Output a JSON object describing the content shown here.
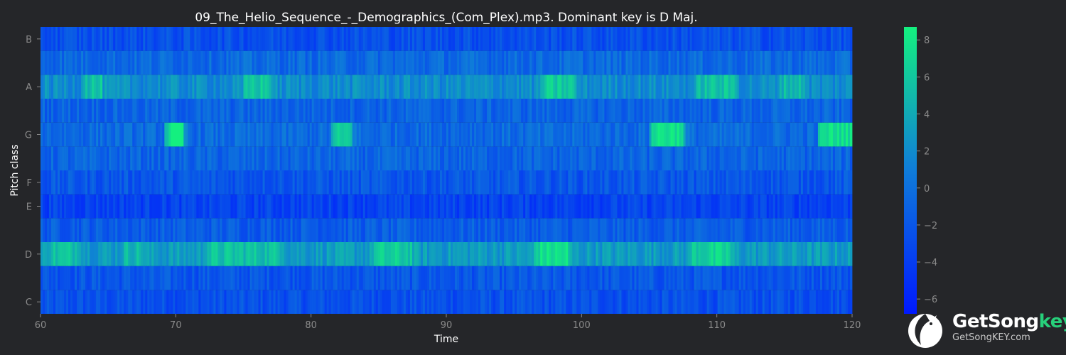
{
  "chart_data": {
    "type": "heatmap",
    "title": "09_The_Helio_Sequence_-_Demographics_(Com_Plex).mp3. Dominant key is D Maj.",
    "xlabel": "Time",
    "ylabel": "Pitch class",
    "x_range": [
      60,
      120
    ],
    "x_ticks": [
      "60",
      "70",
      "80",
      "90",
      "100",
      "110",
      "120"
    ],
    "y_rows": [
      "C",
      "C#",
      "D",
      "D#",
      "E",
      "F",
      "F#",
      "G",
      "G#",
      "A",
      "A#",
      "B"
    ],
    "y_tick_labels": [
      "C",
      "D",
      "E",
      "F",
      "G",
      "A",
      "B"
    ],
    "colorbar": {
      "range": [
        -6.8,
        8.7
      ],
      "ticks": [
        "8",
        "6",
        "4",
        "2",
        "0",
        "−2",
        "−4",
        "−6"
      ],
      "colors": [
        "#0019ff",
        "#0f7cd9",
        "#14f07f"
      ]
    },
    "row_means": {
      "C": -2.5,
      "C#": -2.0,
      "D": 3.0,
      "D#": -1.5,
      "E": -3.5,
      "F": -2.0,
      "F#": -1.0,
      "G": -0.5,
      "G#": -1.0,
      "A": 2.0,
      "A#": -0.5,
      "B": -2.5
    },
    "bright_segments": [
      {
        "pitch": "D",
        "from": 60.5,
        "to": 63.0,
        "value": 5.5
      },
      {
        "pitch": "D",
        "from": 66.0,
        "to": 67.5,
        "value": 5.0
      },
      {
        "pitch": "D",
        "from": 72.0,
        "to": 78.0,
        "value": 5.5
      },
      {
        "pitch": "D",
        "from": 84.5,
        "to": 87.5,
        "value": 6.0
      },
      {
        "pitch": "D",
        "from": 96.5,
        "to": 99.0,
        "value": 7.5
      },
      {
        "pitch": "D",
        "from": 108.0,
        "to": 111.0,
        "value": 6.5
      },
      {
        "pitch": "A",
        "from": 63.0,
        "to": 64.5,
        "value": 5.5
      },
      {
        "pitch": "A",
        "from": 75.0,
        "to": 77.0,
        "value": 6.0
      },
      {
        "pitch": "A",
        "from": 97.0,
        "to": 99.5,
        "value": 6.0
      },
      {
        "pitch": "A",
        "from": 108.5,
        "to": 111.5,
        "value": 5.5
      },
      {
        "pitch": "A",
        "from": 114.5,
        "to": 116.5,
        "value": 5.0
      },
      {
        "pitch": "G",
        "from": 69.2,
        "to": 70.5,
        "value": 8.0
      },
      {
        "pitch": "G",
        "from": 81.5,
        "to": 83.0,
        "value": 6.0
      },
      {
        "pitch": "G",
        "from": 105.0,
        "to": 107.5,
        "value": 8.0
      },
      {
        "pitch": "G",
        "from": 117.5,
        "to": 120.0,
        "value": 7.5
      }
    ],
    "grid": false,
    "legend": "colorbar-right"
  },
  "branding": {
    "name_main": "GetSong",
    "name_accent": "key",
    "url": "GetSongKEY.com"
  },
  "colors": {
    "background": "#252629",
    "text": "#ffffff",
    "tick_text": "#8a8a8a",
    "brand_accent": "#27d07a"
  }
}
